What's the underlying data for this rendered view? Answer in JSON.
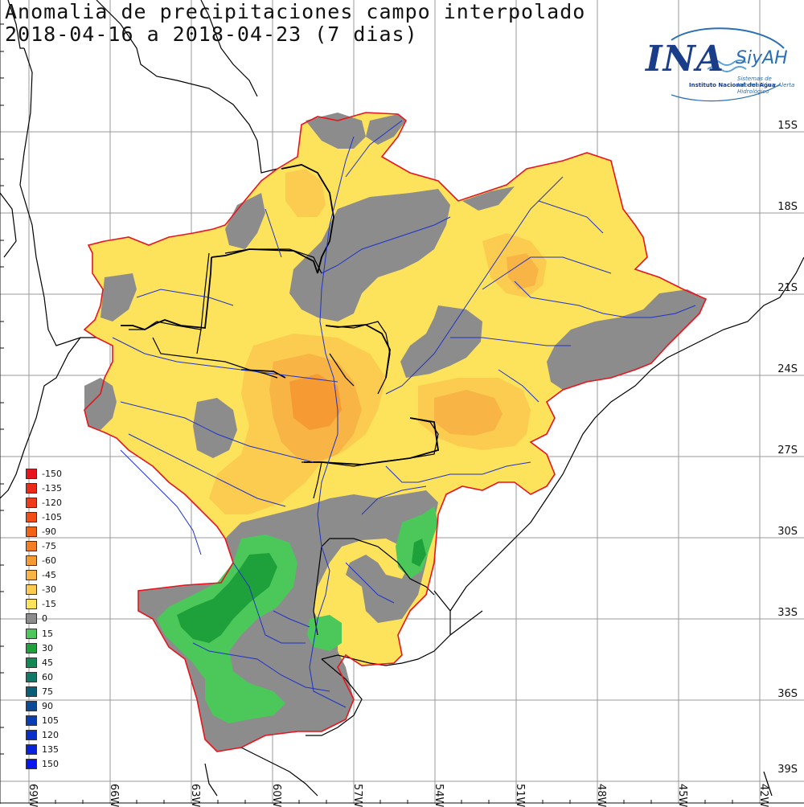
{
  "title": {
    "line1": "Anomalia de precipitaciones campo interpolado",
    "line2": "2018-04-16 a 2018-04-23 (7 dias)"
  },
  "logo": {
    "ina": "INA",
    "siyah": "SiyAH",
    "sub1": "Instituto Nacional del Agua",
    "sub2": "Sistemas de Información y Alerta Hidrológico"
  },
  "lat_labels": [
    "15S",
    "18S",
    "21S",
    "24S",
    "27S",
    "30S",
    "33S",
    "36S",
    "39S"
  ],
  "lon_labels": [
    "69W",
    "66W",
    "63W",
    "60W",
    "57W",
    "54W",
    "51W",
    "48W",
    "45W",
    "42W"
  ],
  "legend": [
    {
      "label": "-150",
      "color": "#e8141e"
    },
    {
      "label": "-135",
      "color": "#ec2a1a"
    },
    {
      "label": "-120",
      "color": "#ee3c18"
    },
    {
      "label": "-105",
      "color": "#f04e16"
    },
    {
      "label": "-90",
      "color": "#f26214"
    },
    {
      "label": "-75",
      "color": "#f47e24"
    },
    {
      "label": "-60",
      "color": "#f69a34"
    },
    {
      "label": "-45",
      "color": "#f8b444"
    },
    {
      "label": "-30",
      "color": "#fbcc50"
    },
    {
      "label": "-15",
      "color": "#fde35c"
    },
    {
      "label": "0",
      "color": "#8c8c8c"
    },
    {
      "label": "15",
      "color": "#4cc85a"
    },
    {
      "label": "30",
      "color": "#1ea03a"
    },
    {
      "label": "45",
      "color": "#108a52"
    },
    {
      "label": "60",
      "color": "#0c7a66"
    },
    {
      "label": "75",
      "color": "#0a5f78"
    },
    {
      "label": "90",
      "color": "#0a4a96"
    },
    {
      "label": "105",
      "color": "#0a3cb4"
    },
    {
      "label": "120",
      "color": "#0a2ec8"
    },
    {
      "label": "135",
      "color": "#0a22dc"
    },
    {
      "label": "150",
      "color": "#0a14f0"
    }
  ],
  "colors": {
    "boundary": "#e8141e",
    "river": "#1e32c8",
    "grid": "#9a9a9a",
    "coast": "#000000"
  }
}
